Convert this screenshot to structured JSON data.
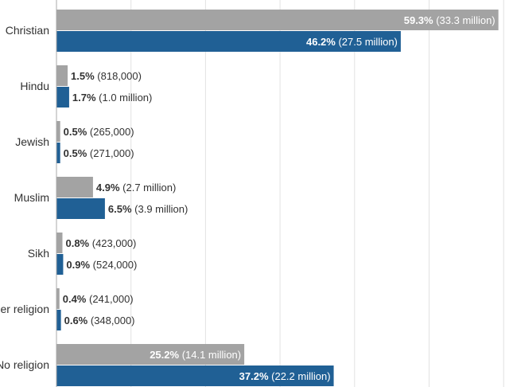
{
  "chart_data": {
    "type": "bar",
    "orientation": "horizontal",
    "categories": [
      "Christian",
      "Hindu",
      "Jewish",
      "Muslim",
      "Sikh",
      "Other religion",
      "No religion"
    ],
    "series": [
      {
        "color": "#a3a3a3",
        "values": [
          59.3,
          1.5,
          0.5,
          4.9,
          0.8,
          0.4,
          25.2
        ],
        "pct_labels": [
          "59.3%",
          "1.5%",
          "0.5%",
          "4.9%",
          "0.8%",
          "0.4%",
          "25.2%"
        ],
        "count_labels": [
          "(33.3 million)",
          "(818,000)",
          "(265,000)",
          "(2.7 million)",
          "(423,000)",
          "(241,000)",
          "(14.1 million)"
        ]
      },
      {
        "color": "#206095",
        "values": [
          46.2,
          1.7,
          0.5,
          6.5,
          0.9,
          0.6,
          37.2
        ],
        "pct_labels": [
          "46.2%",
          "1.7%",
          "0.5%",
          "6.5%",
          "0.9%",
          "0.6%",
          "37.2%"
        ],
        "count_labels": [
          "(27.5 million)",
          "(1.0 million)",
          "(271,000)",
          "(3.9 million)",
          "(524,000)",
          "(348,000)",
          "(22.2 million)"
        ]
      }
    ],
    "xlim": [
      0,
      60
    ],
    "x_gridlines": [
      0,
      10,
      20,
      30,
      40,
      50,
      60
    ],
    "grid": true,
    "legend": "none"
  }
}
